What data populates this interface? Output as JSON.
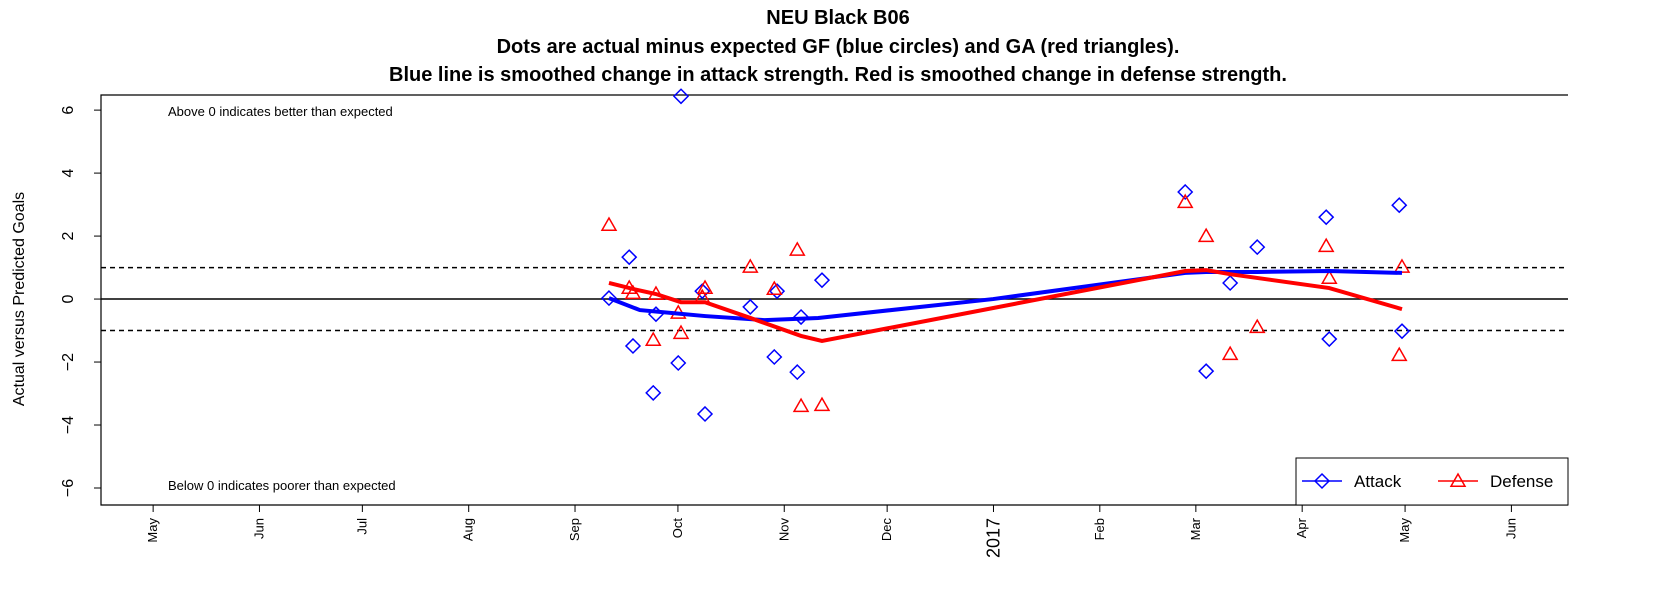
{
  "chart_data": {
    "type": "scatter",
    "title": "NEU Black B06",
    "subtitle": "Dots are actual minus expected GF (blue circles) and GA (red triangles).",
    "subtitle2": "Blue line is smoothed change in attack strength. Red is smoothed change in defense strength.",
    "ylabel": "Actual versus Predicted Goals",
    "annotations": [
      "Above 0 indicates better than expected",
      "Below 0 indicates poorer than expected"
    ],
    "xlim": [
      -15.2,
      412.5
    ],
    "ylim": [
      -6.54,
      6.48
    ],
    "xticks": [
      {
        "value": 0,
        "label": "May"
      },
      {
        "value": 31,
        "label": "Jun"
      },
      {
        "value": 61,
        "label": "Jul"
      },
      {
        "value": 92,
        "label": "Aug"
      },
      {
        "value": 123,
        "label": "Sep"
      },
      {
        "value": 153,
        "label": "Oct"
      },
      {
        "value": 184,
        "label": "Nov"
      },
      {
        "value": 214,
        "label": "Dec"
      },
      {
        "value": 245,
        "label": "2017"
      },
      {
        "value": 276,
        "label": "Feb"
      },
      {
        "value": 304,
        "label": "Mar"
      },
      {
        "value": 335,
        "label": "Apr"
      },
      {
        "value": 365,
        "label": "May"
      },
      {
        "value": 396,
        "label": "Jun"
      }
    ],
    "yticks": [
      {
        "value": -6,
        "label": "−6"
      },
      {
        "value": -4,
        "label": "−4"
      },
      {
        "value": -2,
        "label": "−2"
      },
      0,
      2,
      4,
      6
    ],
    "reference_line": 0,
    "dashed_lines": [
      -1,
      1
    ],
    "series": [
      {
        "name": "Attack",
        "color": "#0000ff",
        "marker": "diamond",
        "x": [
          132.9,
          138.8,
          139.9,
          146.6,
          145.8,
          153.9,
          153.1,
          160.1,
          160.9,
          174.1,
          181.1,
          181.9,
          187.8,
          188.9,
          195.0,
          300.9,
          307.0,
          314.0,
          321.9,
          342.0,
          342.9,
          363.3,
          364.1
        ],
        "values": [
          0.03,
          1.33,
          -1.49,
          -0.48,
          -2.98,
          6.44,
          -2.03,
          0.25,
          -3.65,
          -0.25,
          -1.84,
          0.25,
          -2.32,
          -0.57,
          0.6,
          3.4,
          -2.29,
          0.51,
          1.65,
          2.6,
          -1.27,
          2.98,
          -1.02
        ]
      },
      {
        "name": "Defense",
        "color": "#ff0000",
        "marker": "triangle",
        "x": [
          132.9,
          138.8,
          139.9,
          146.6,
          145.8,
          153.1,
          153.9,
          160.1,
          160.9,
          174.1,
          181.1,
          187.8,
          188.9,
          195.0,
          300.9,
          307.0,
          314.0,
          321.9,
          342.0,
          342.9,
          363.3,
          364.1
        ],
        "values": [
          2.35,
          0.35,
          0.19,
          0.16,
          -1.3,
          -0.44,
          -1.08,
          0.06,
          0.35,
          1.02,
          0.32,
          1.56,
          -3.4,
          -3.37,
          3.08,
          2.0,
          -1.75,
          -0.89,
          1.68,
          0.67,
          -1.78,
          1.02
        ]
      }
    ],
    "lines": [
      {
        "color": "#0000ff",
        "x": [
          132.9,
          141.9,
          152.8,
          160.9,
          178.3,
          193.9,
          244.9,
          300.9,
          307.0,
          321.9,
          342.9,
          364.1
        ],
        "values": [
          0.03,
          -0.35,
          -0.46,
          -0.54,
          -0.67,
          -0.6,
          0,
          0.83,
          0.86,
          0.86,
          0.89,
          0.83
        ]
      },
      {
        "color": "#ff0000",
        "x": [
          132.9,
          139.9,
          146.6,
          153.9,
          160.9,
          174.1,
          188.9,
          195.0,
          300.9,
          307.0,
          314.0,
          342.9,
          364.1
        ],
        "values": [
          0.51,
          0.32,
          0.16,
          -0.1,
          -0.1,
          -0.6,
          -1.17,
          -1.33,
          0.89,
          0.92,
          0.79,
          0.35,
          -0.32
        ]
      }
    ],
    "legend": "bottom-right"
  }
}
